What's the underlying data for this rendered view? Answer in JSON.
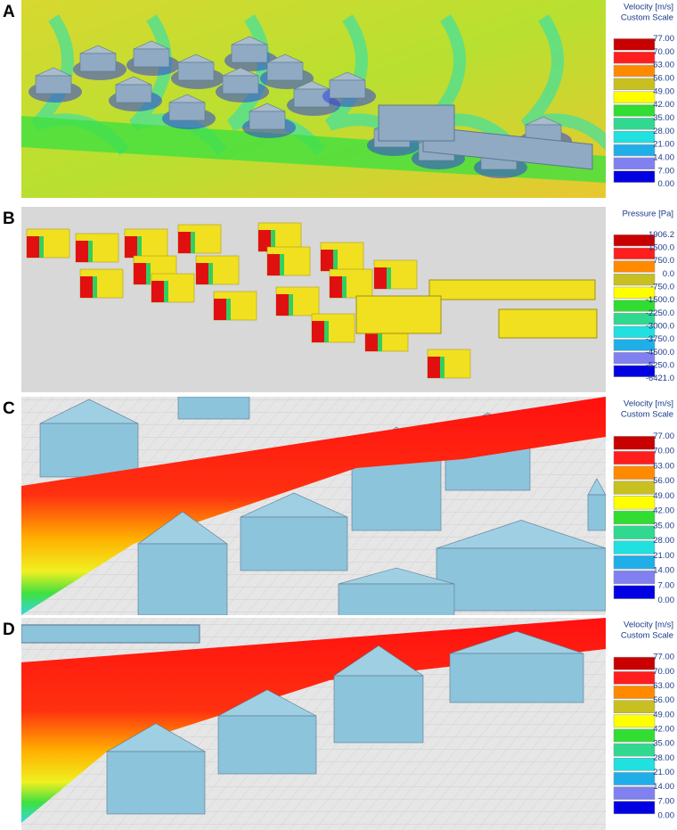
{
  "panels": [
    {
      "label": "A",
      "legend": {
        "title": [
          "Velocity [m/s]",
          "Custom Scale"
        ],
        "labels": [
          "77.00",
          "70.00",
          "63.00",
          "56.00",
          "49.00",
          "42.00",
          "35.00",
          "28.00",
          "21.00",
          "14.00",
          "7.00",
          "0.00"
        ],
        "colors": [
          "#c80000",
          "#ff1e1e",
          "#ff8a00",
          "#c8c020",
          "#ffff00",
          "#30dd30",
          "#30d890",
          "#20e0e0",
          "#20aee8",
          "#8080f0",
          "#0000e0"
        ]
      }
    },
    {
      "label": "B",
      "legend": {
        "title": [
          "Pressure [Pa]"
        ],
        "labels": [
          "1906.2",
          "1500.0",
          "750.0",
          "0.0",
          "-750.0",
          "-1500.0",
          "-2250.0",
          "-3000.0",
          "-3750.0",
          "-4500.0",
          "-5250.0",
          "-6421.0"
        ],
        "colors": [
          "#c80000",
          "#ff1e1e",
          "#ff8a00",
          "#c8c020",
          "#ffff00",
          "#30dd30",
          "#30d890",
          "#20e0e0",
          "#20aee8",
          "#8080f0",
          "#0000e0"
        ]
      }
    },
    {
      "label": "C",
      "legend": {
        "title": [
          "Velocity [m/s]",
          "Custom Scale"
        ],
        "labels": [
          "77.00",
          "70.00",
          "63.00",
          "56.00",
          "49.00",
          "42.00",
          "35.00",
          "28.00",
          "21.00",
          "14.00",
          "7.00",
          "0.00"
        ],
        "colors": [
          "#c80000",
          "#ff1e1e",
          "#ff8a00",
          "#c8c020",
          "#ffff00",
          "#30dd30",
          "#30d890",
          "#20e0e0",
          "#20aee8",
          "#8080f0",
          "#0000e0"
        ]
      }
    },
    {
      "label": "D",
      "legend": {
        "title": [
          "Velocity [m/s]",
          "Custom Scale"
        ],
        "labels": [
          "77.00",
          "70.00",
          "63.00",
          "56.00",
          "49.00",
          "42.00",
          "35.00",
          "28.00",
          "21.00",
          "14.00",
          "7.00",
          "0.00"
        ],
        "colors": [
          "#c80000",
          "#ff1e1e",
          "#ff8a00",
          "#c8c020",
          "#ffff00",
          "#30dd30",
          "#30d890",
          "#20e0e0",
          "#20aee8",
          "#8080f0",
          "#0000e0"
        ]
      }
    }
  ]
}
